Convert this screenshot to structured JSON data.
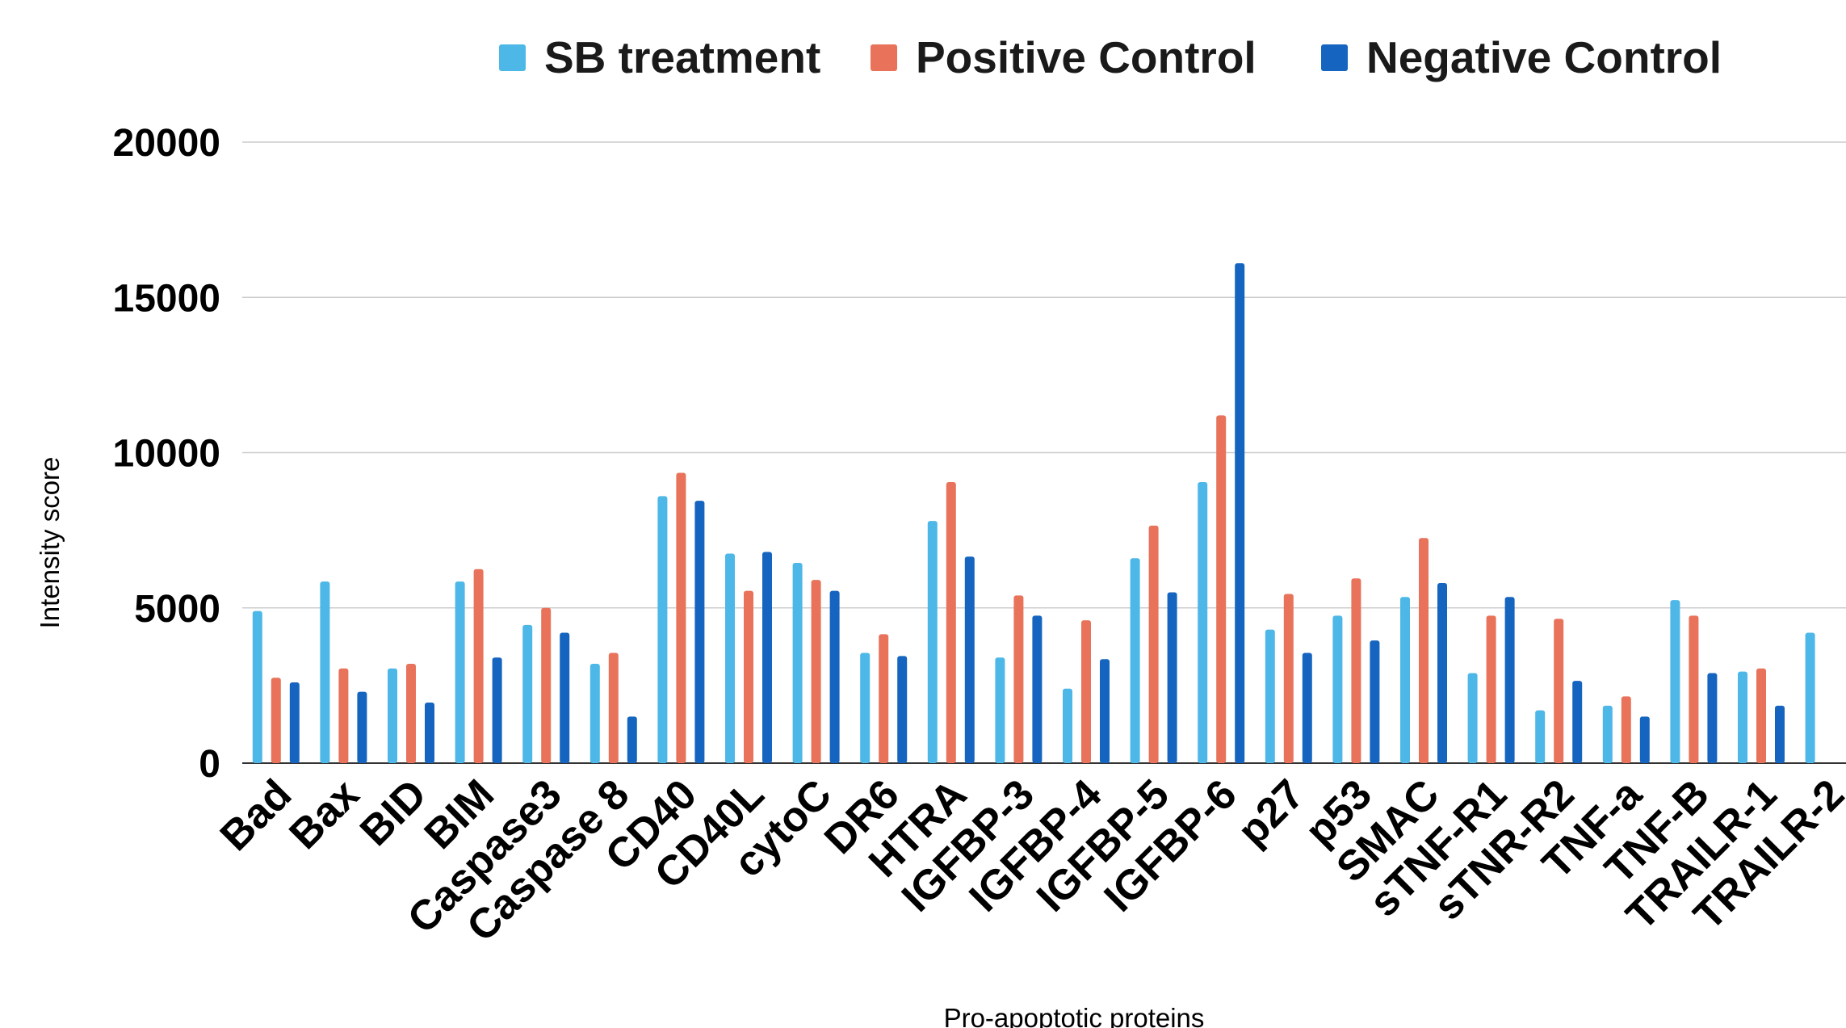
{
  "chart_data": {
    "type": "bar",
    "title": "",
    "xlabel": "Pro-apoptotic proteins",
    "ylabel": "Intensity score",
    "ylim": [
      0,
      20000
    ],
    "yticks": [
      0,
      5000,
      10000,
      15000,
      20000
    ],
    "grid": true,
    "legend_position": "top",
    "categories": [
      "Bad",
      "Bax",
      "BID",
      "BIM",
      "Caspase3",
      "Caspase 8",
      "CD40",
      "CD40L",
      "cytoC",
      "DR6",
      "HTRA",
      "IGFBP-3",
      "IGFBP-4",
      "IGFBP-5",
      "IGFBP-6",
      "p27",
      "p53",
      "SMAC",
      "sTNF-R1",
      "sTNR-R2",
      "TNF-a",
      "TNF-B",
      "TRAILR-1",
      "TRAILR-2"
    ],
    "series": [
      {
        "name": "SB treatment",
        "color": "#4db8e8",
        "values": [
          4900,
          5850,
          3050,
          5850,
          4450,
          3200,
          8600,
          6750,
          6450,
          3550,
          7800,
          3400,
          2400,
          6600,
          9050,
          4300,
          4750,
          5350,
          2900,
          1700,
          1850,
          5250,
          2950,
          4200
        ]
      },
      {
        "name": "Positive Control",
        "color": "#e8735a",
        "values": [
          2750,
          3050,
          3200,
          6250,
          5000,
          3550,
          9350,
          5550,
          5900,
          4150,
          9050,
          5400,
          4600,
          7650,
          11200,
          5450,
          5950,
          7250,
          4750,
          4650,
          2150,
          4750,
          3050,
          0
        ]
      },
      {
        "name": "Negative Control",
        "color": "#1565c0",
        "values": [
          2600,
          2300,
          1950,
          3400,
          4200,
          1500,
          8450,
          6800,
          5550,
          3450,
          6650,
          4750,
          3350,
          5500,
          16100,
          3550,
          3950,
          5800,
          5350,
          2650,
          1500,
          2900,
          1850,
          0
        ]
      }
    ]
  }
}
